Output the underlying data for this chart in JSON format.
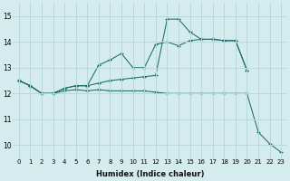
{
  "background_color": "#d4ecee",
  "grid_color": "#b8d8dc",
  "line_color": "#1a6e65",
  "xlabel": "Humidex (Indice chaleur)",
  "xlim": [
    -0.5,
    23.5
  ],
  "ylim": [
    9.5,
    15.5
  ],
  "yticks": [
    10,
    11,
    12,
    13,
    14,
    15
  ],
  "xticks": [
    0,
    1,
    2,
    3,
    4,
    5,
    6,
    7,
    8,
    9,
    10,
    11,
    12,
    13,
    14,
    15,
    16,
    17,
    18,
    19,
    20,
    21,
    22,
    23
  ],
  "line1_x": [
    0,
    1,
    2,
    3,
    4,
    5,
    6,
    7,
    8,
    9,
    10,
    11,
    12,
    13,
    14,
    15,
    16,
    17,
    18,
    19,
    20
  ],
  "line1_y": [
    12.5,
    12.3,
    12.0,
    12.0,
    12.2,
    12.3,
    12.3,
    13.1,
    13.3,
    13.55,
    13.0,
    13.0,
    13.9,
    14.0,
    13.85,
    14.05,
    14.1,
    14.1,
    14.05,
    14.05,
    12.9
  ],
  "line2_x": [
    0,
    1,
    2,
    3,
    4,
    5,
    6,
    7,
    8,
    9,
    10,
    11,
    12,
    13,
    14,
    15,
    16,
    17,
    18,
    19,
    20
  ],
  "line2_y": [
    12.5,
    12.3,
    12.0,
    12.0,
    12.2,
    12.3,
    12.3,
    12.4,
    12.5,
    12.55,
    12.6,
    12.65,
    12.7,
    14.88,
    14.88,
    14.38,
    14.1,
    14.1,
    14.05,
    14.05,
    12.9
  ],
  "line3_x": [
    0,
    1,
    2,
    3,
    4,
    5,
    6,
    7,
    8,
    9,
    10,
    11,
    12,
    13,
    14,
    15,
    16,
    17,
    18,
    19,
    20,
    21,
    22,
    23
  ],
  "line3_y": [
    12.5,
    12.3,
    12.0,
    12.0,
    12.1,
    12.15,
    12.1,
    12.15,
    12.1,
    12.1,
    12.1,
    12.1,
    12.05,
    12.0,
    12.0,
    12.0,
    12.0,
    12.0,
    12.0,
    12.0,
    12.0,
    10.5,
    10.05,
    9.72
  ]
}
